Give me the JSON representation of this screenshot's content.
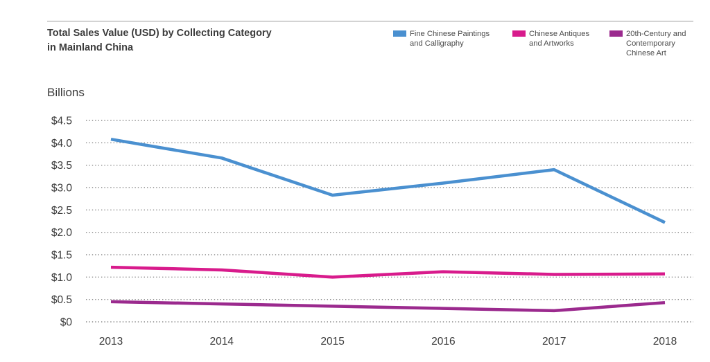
{
  "chart_data": {
    "type": "line",
    "title": "Total Sales Value (USD) by Collecting Category\nin Mainland China",
    "y_unit": "Billions",
    "x": [
      "2013",
      "2014",
      "2015",
      "2016",
      "2017",
      "2018"
    ],
    "y_ticks": [
      "$0",
      "$0.5",
      "$1.0",
      "$1.5",
      "$2.0",
      "$2.5",
      "$3.0",
      "$3.5",
      "$4.0",
      "$4.5"
    ],
    "ylim": [
      0,
      4.5
    ],
    "grid": "horizontal dotted",
    "legend_position": "top-right",
    "series": [
      {
        "name": "Fine Chinese Paintings\nand Calligraphy",
        "color": "#4a90d0",
        "values": [
          4.08,
          3.66,
          2.83,
          3.1,
          3.4,
          2.22
        ]
      },
      {
        "name": "Chinese Antiques\nand Artworks",
        "color": "#d81b8c",
        "values": [
          1.22,
          1.16,
          1.0,
          1.12,
          1.06,
          1.07
        ]
      },
      {
        "name": "20th-Century and\nContemporary\nChinese Art",
        "color": "#9b2a8e",
        "values": [
          0.45,
          0.4,
          0.35,
          0.3,
          0.25,
          0.43
        ]
      }
    ]
  }
}
